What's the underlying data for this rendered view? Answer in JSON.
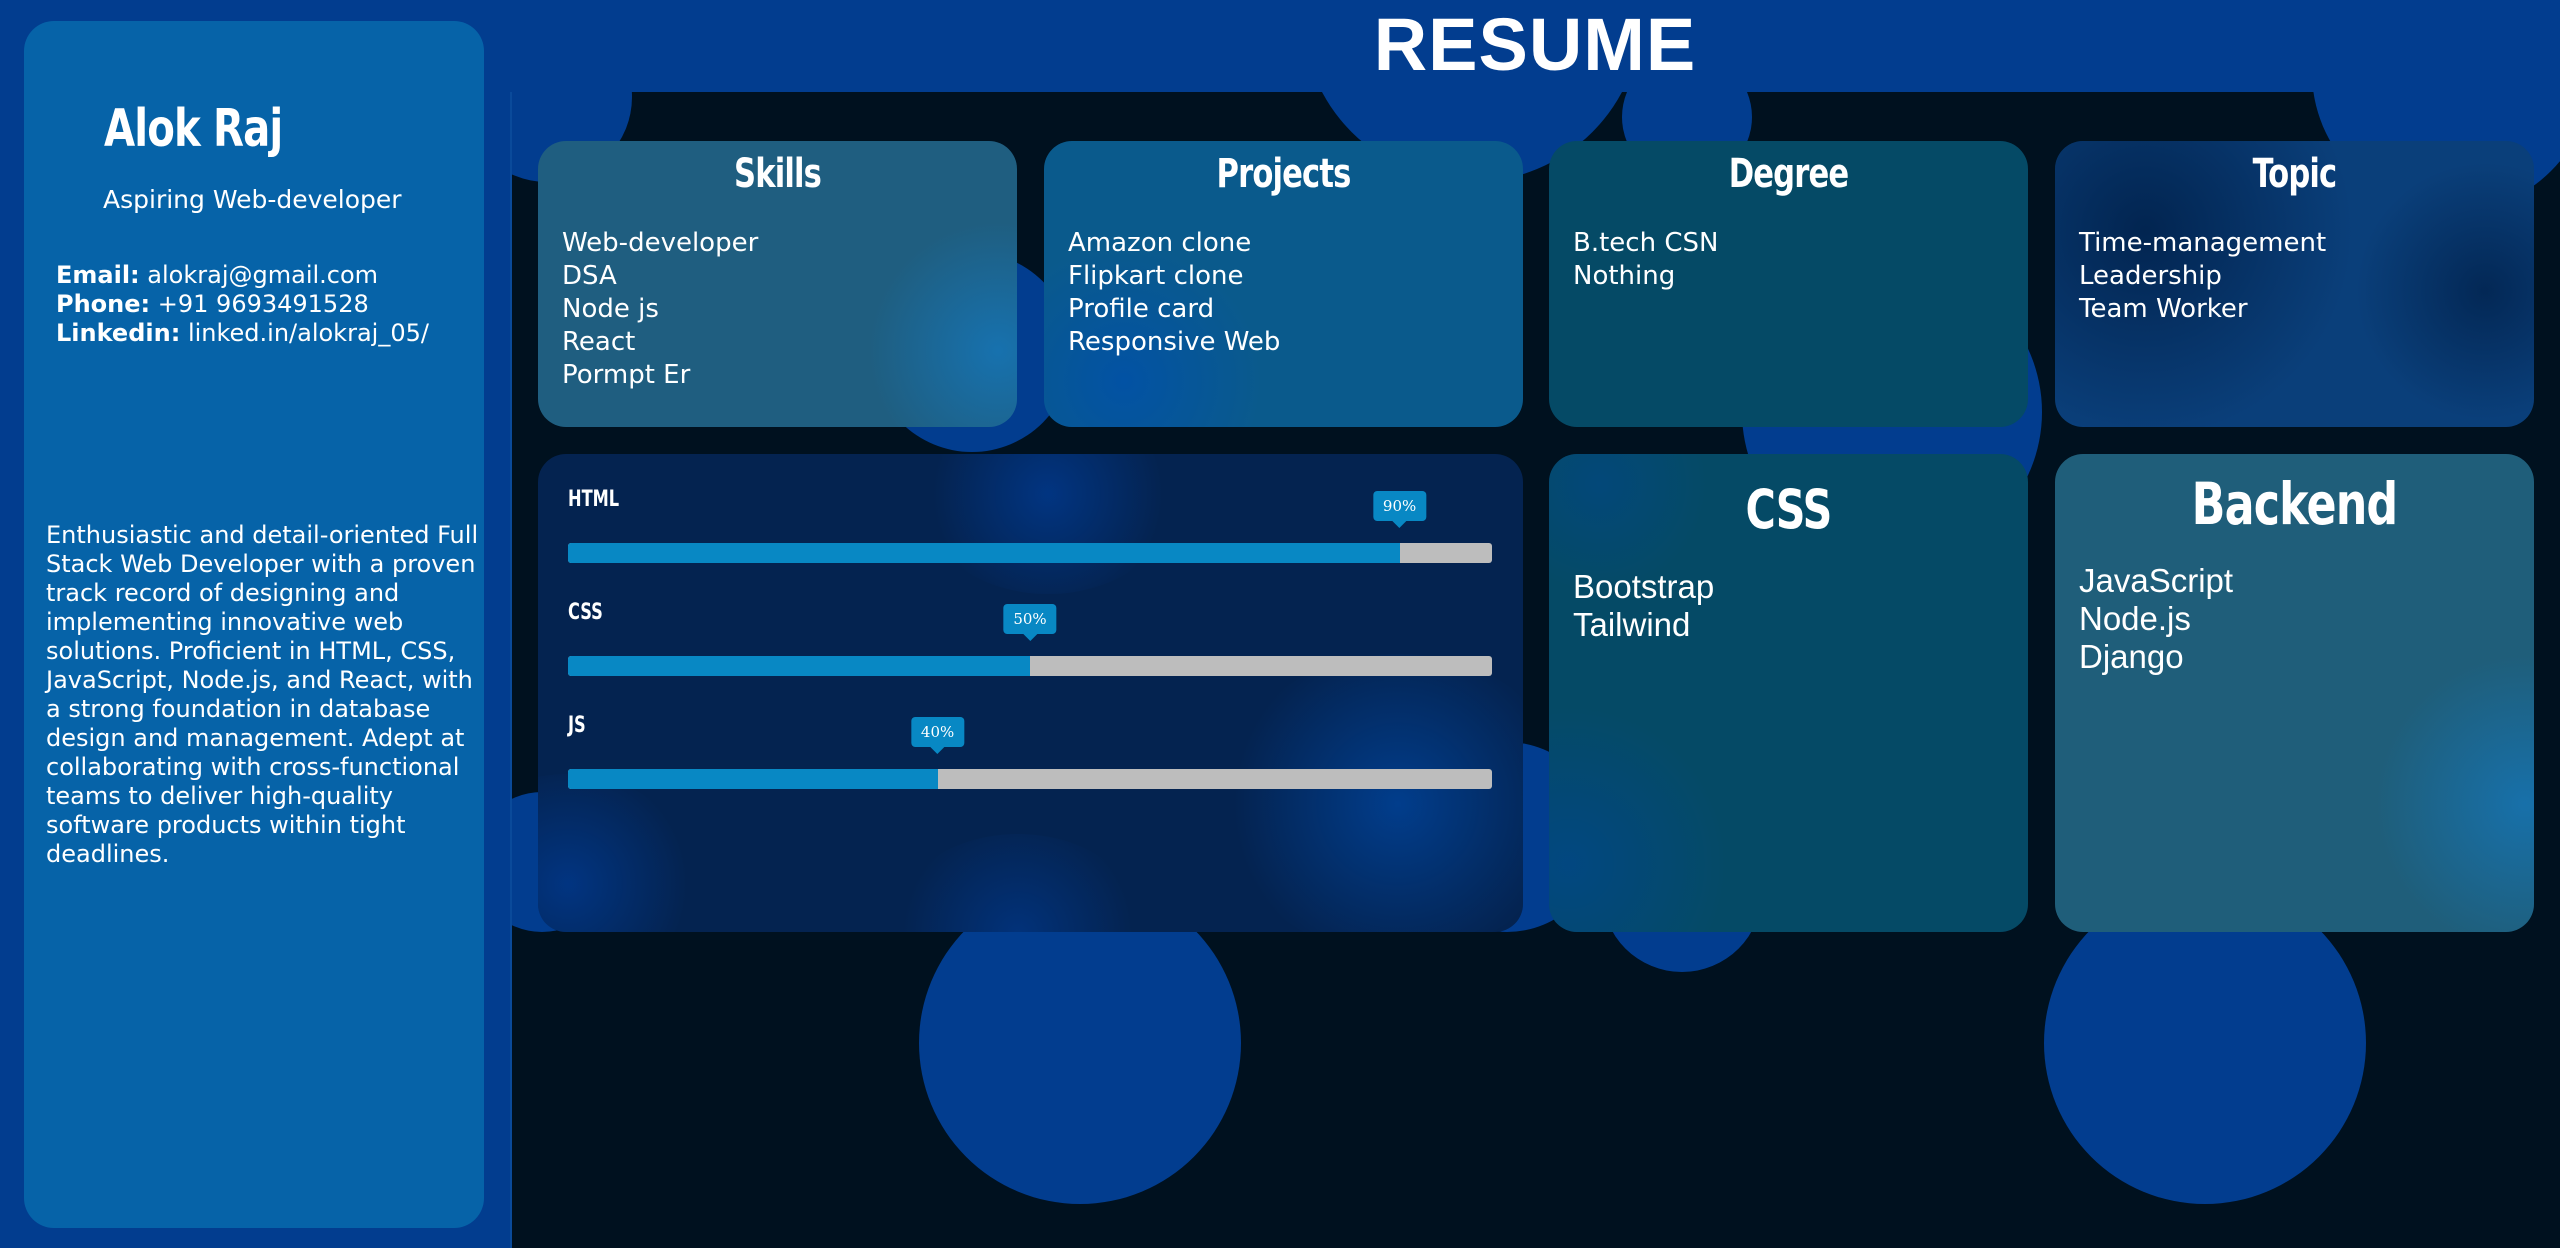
{
  "page": {
    "title": "RESUME"
  },
  "profile": {
    "name": "Alok Raj",
    "role": "Aspiring Web-developer",
    "contacts": [
      {
        "label": "Email:",
        "value": "alokraj@gmail.com"
      },
      {
        "label": "Phone:",
        "value": "+91 9693491528"
      },
      {
        "label": "Linkedin:",
        "value": "linked.in/alokraj_05/"
      }
    ],
    "about": "Enthusiastic and detail-oriented Full Stack Web Developer with a proven track record of designing and implementing innovative web solutions. Proficient in HTML, CSS, JavaScript, Node.js, and React, with a strong foundation in database design and management. Adept at collaborating with cross-functional teams to deliver high-quality software products within tight deadlines."
  },
  "cards": {
    "skills": {
      "title": "Skills",
      "items": [
        "Web-developer",
        "DSA",
        "Node js",
        "React",
        "Pormpt Er"
      ]
    },
    "projects": {
      "title": "Projects",
      "items": [
        "Amazon clone",
        "Flipkart clone",
        "Profile card",
        "Responsive Web"
      ]
    },
    "degree": {
      "title": "Degree",
      "items": [
        "B.tech CSN",
        "Nothing"
      ]
    },
    "topic": {
      "title": "Topic",
      "items": [
        "Time-management",
        "Leadership",
        "Team Worker"
      ]
    },
    "css": {
      "title": "CSS",
      "items": [
        "Bootstrap",
        "Tailwind"
      ]
    },
    "backend": {
      "title": "Backend",
      "items": [
        "JavaScript",
        "Node.js",
        "Django"
      ]
    }
  },
  "skill_bars": [
    {
      "label": "HTML",
      "percent": 90,
      "tip": "90%"
    },
    {
      "label": "CSS",
      "percent": 50,
      "tip": "50%"
    },
    {
      "label": "JS",
      "percent": 40,
      "tip": "40%"
    }
  ],
  "colors": {
    "page_blue": "#023d8f",
    "sidebar_blue": "#0663a8",
    "main_dark": "#00111f",
    "bar_fill": "#0888c4",
    "bar_track": "#bdbdbd"
  }
}
